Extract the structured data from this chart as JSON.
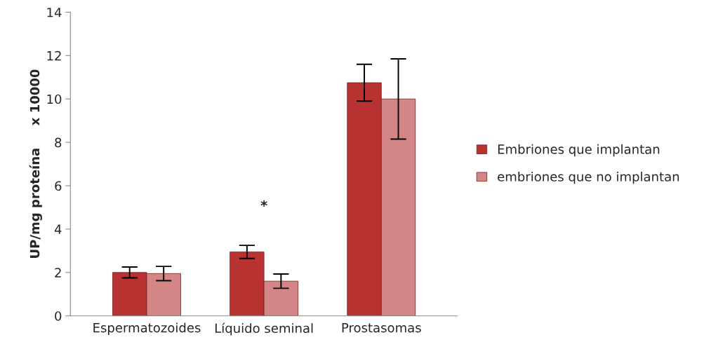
{
  "chart_data": {
    "type": "bar",
    "ylabel": "UP/mg proteína     x 10000",
    "categories": [
      "Espermatozoides",
      "Líquido seminal",
      "Prostasomas"
    ],
    "series": [
      {
        "name": "Embriones que implantan",
        "color": "#b83232",
        "values": [
          2.0,
          2.95,
          10.75
        ],
        "errors": [
          0.25,
          0.3,
          0.85
        ]
      },
      {
        "name": "embriones que no implantan",
        "color": "#d48686",
        "values": [
          1.95,
          1.6,
          10.0
        ],
        "errors": [
          0.33,
          0.33,
          1.85
        ]
      }
    ],
    "ylim": [
      0,
      14
    ],
    "yticks": [
      0,
      2,
      4,
      6,
      8,
      10,
      12,
      14
    ],
    "grid": false,
    "legend": "right",
    "annotations": [
      "*"
    ]
  }
}
